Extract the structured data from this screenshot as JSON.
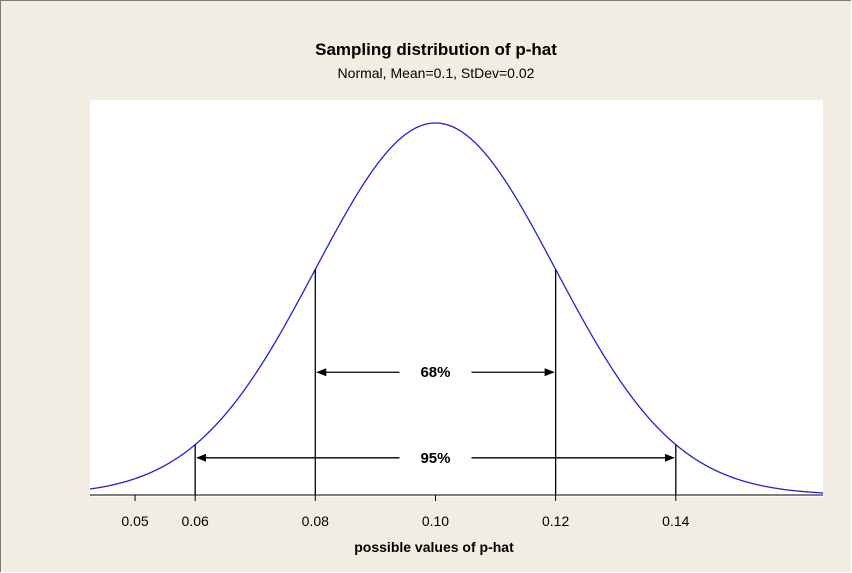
{
  "chart_data": {
    "type": "line",
    "title": "Sampling distribution of p-hat",
    "subtitle": "Normal, Mean=0.1, StDev=0.02",
    "xlabel": "possible values of p-hat",
    "ylabel": "",
    "distribution": {
      "family": "Normal",
      "mean": 0.1,
      "stdev": 0.02
    },
    "xlim": [
      0.0425,
      0.1645
    ],
    "x_ticks": [
      0.05,
      0.06,
      0.08,
      0.1,
      0.12,
      0.14
    ],
    "x_tick_labels": [
      "0.05",
      "0.06",
      "0.08",
      "0.10",
      "0.12",
      "0.14"
    ],
    "vertical_lines": [
      0.06,
      0.08,
      0.12,
      0.14
    ],
    "annotations": [
      {
        "text": "68%",
        "from": 0.08,
        "to": 0.12,
        "level": 0.33
      },
      {
        "text": "95%",
        "from": 0.06,
        "to": 0.14,
        "level": 0.1
      }
    ],
    "grid": false,
    "colors": {
      "curve": "#2222cc",
      "plot_bg": "#ffffff",
      "frame_bg": "#f1ede3",
      "lines": "#000000"
    }
  }
}
